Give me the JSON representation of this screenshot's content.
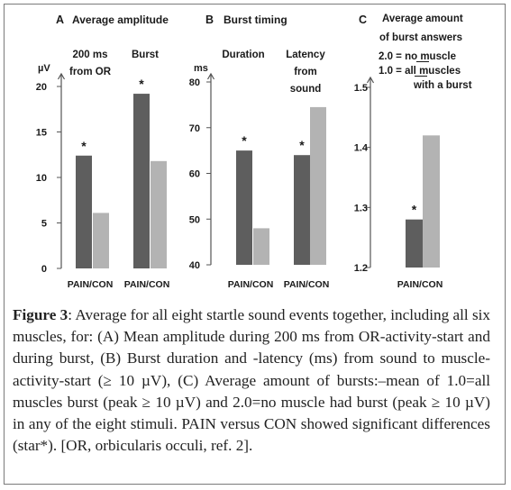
{
  "chart_data": [
    {
      "type": "bar",
      "panel_letter": "A",
      "title": "Average amplitude",
      "ylabel": "µV",
      "ylim": [
        0,
        20
      ],
      "yticks": [
        0,
        5,
        10,
        15,
        20
      ],
      "group_labels": [
        "200 ms\nfrom OR",
        "Burst"
      ],
      "xlabels": [
        "PAIN/CON",
        "PAIN/CON"
      ],
      "series": [
        {
          "name": "PAIN",
          "values": [
            12.4,
            19.2
          ]
        },
        {
          "name": "CON",
          "values": [
            6.1,
            11.8
          ]
        }
      ],
      "significance": [
        "*",
        "*"
      ]
    },
    {
      "type": "bar",
      "panel_letter": "B",
      "title": "Burst timing",
      "ylabel": "ms",
      "ylim": [
        40,
        80
      ],
      "yticks": [
        40,
        50,
        60,
        70,
        80
      ],
      "group_labels": [
        "Duration",
        "Latency\nfrom\nsound"
      ],
      "xlabels": [
        "PAIN/CON",
        "PAIN/CON"
      ],
      "series": [
        {
          "name": "PAIN",
          "values": [
            65,
            64
          ]
        },
        {
          "name": "CON",
          "values": [
            48,
            74.5
          ]
        }
      ],
      "significance": [
        "*",
        "*"
      ]
    },
    {
      "type": "bar",
      "panel_letter": "C",
      "title": "Average amount\nof burst answers",
      "legend_lines": [
        "2.0 = no muscle",
        "1.0 = all muscles\nwith a burst"
      ],
      "ylabel": "",
      "ylim": [
        1.2,
        1.5
      ],
      "yticks": [
        1.2,
        1.3,
        1.4,
        1.5
      ],
      "xlabels": [
        "PAIN/CON"
      ],
      "series": [
        {
          "name": "PAIN",
          "values": [
            1.28
          ]
        },
        {
          "name": "CON",
          "values": [
            1.42
          ]
        }
      ],
      "significance": [
        "*"
      ]
    }
  ],
  "colors": {
    "pain": "#5e5e5e",
    "con": "#b3b3b3",
    "axis": "#555555"
  },
  "caption": {
    "label": "Figure 3",
    "text": ": Average for all eight startle sound events together, including all six muscles, for: (A) Mean amplitude during 200 ms from OR-activity-start and during burst, (B) Burst duration and -latency (ms) from sound to muscle-activity-start (≥ 10 µV), (C) Average amount of bursts:–mean of 1.0=all muscles burst (peak ≥ 10 µV) and 2.0=no muscle had burst (peak ≥ 10 µV) in any of the eight stimuli. PAIN versus CON showed significant differences (star*). [OR, orbicularis occuli, ref. 2]."
  }
}
